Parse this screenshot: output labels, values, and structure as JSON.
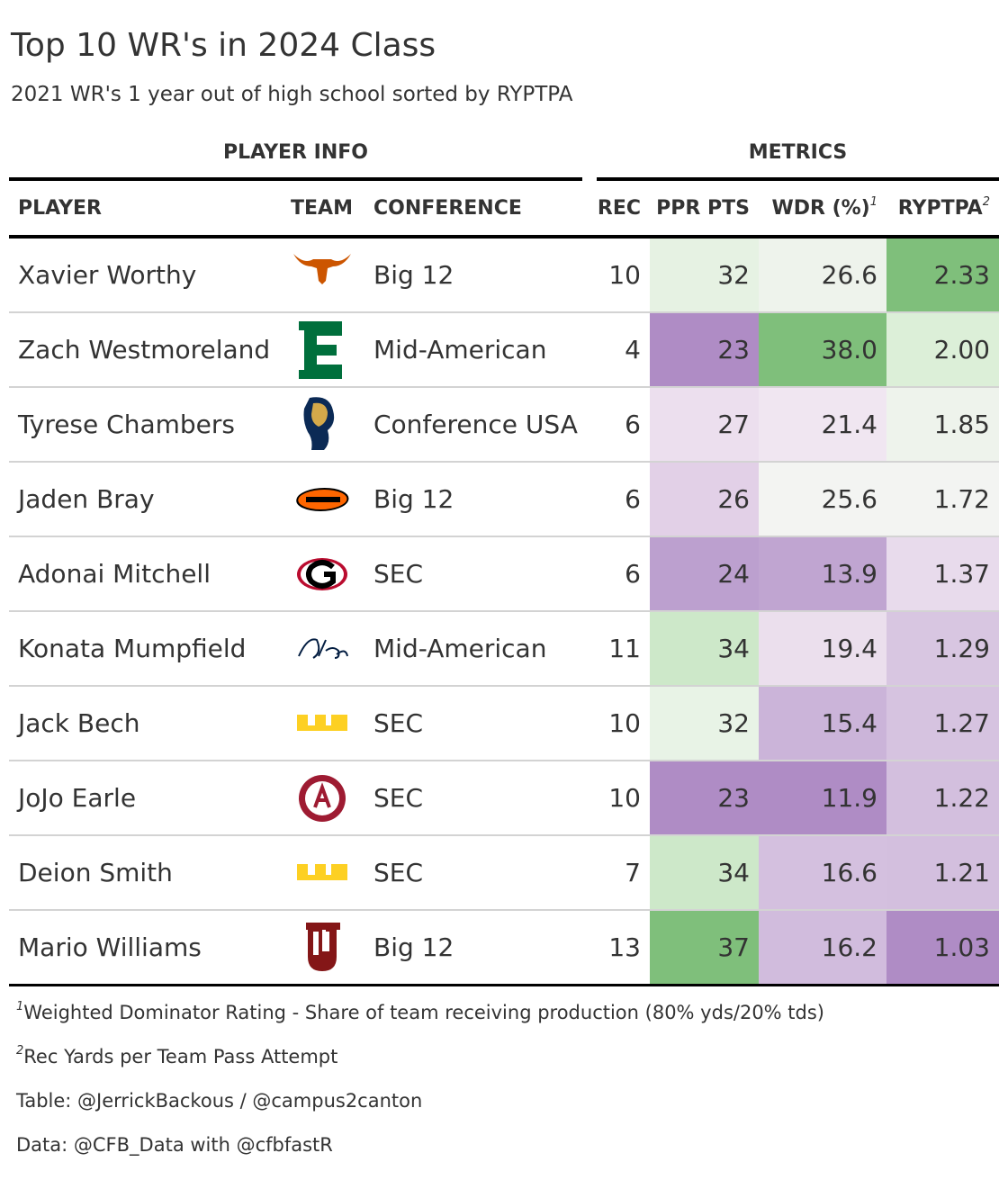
{
  "title": "Top 10 WR's in 2024 Class",
  "subtitle": "2021 WR's 1 year out of high school sorted by RYPTPA",
  "spanners": [
    {
      "label": "PLAYER INFO"
    },
    {
      "label": "METRICS"
    }
  ],
  "columns": [
    {
      "label": "PLAYER"
    },
    {
      "label": "TEAM"
    },
    {
      "label": "CONFERENCE"
    },
    {
      "label": "REC"
    },
    {
      "label": "PPR PTS"
    },
    {
      "label": "WDR (%)",
      "mark": "1"
    },
    {
      "label": "RYPTPA",
      "mark": "2"
    }
  ],
  "rows": [
    [
      "Xavier Worthy",
      null,
      "Big 12",
      10,
      32,
      26.6,
      2.33
    ],
    [
      "Zach Westmoreland",
      null,
      "Mid-American",
      4,
      23,
      {
        "value": 38,
        "label": "38.0"
      },
      {
        "value": 2,
        "label": "2.00"
      }
    ],
    [
      "Tyrese Chambers",
      null,
      "Conference USA",
      6,
      27,
      21.4,
      1.85
    ],
    [
      "Jaden Bray",
      null,
      "Big 12",
      6,
      26,
      25.6,
      1.72
    ],
    [
      "Adonai Mitchell",
      null,
      "SEC",
      6,
      24,
      13.9,
      1.37
    ],
    [
      "Konata Mumpfield",
      null,
      "Mid-American",
      11,
      34,
      19.4,
      1.29
    ],
    [
      "Jack Bech",
      null,
      "SEC",
      10,
      32,
      15.4,
      1.27
    ],
    [
      "JoJo Earle",
      null,
      "SEC",
      10,
      23,
      11.9,
      1.22
    ],
    [
      "Deion Smith",
      null,
      "SEC",
      7,
      34,
      16.6,
      1.21
    ],
    [
      "Mario Williams",
      null,
      "Big 12",
      13,
      37,
      16.2,
      1.03
    ]
  ],
  "cell_colors": [
    [
      null,
      null,
      null,
      null,
      "#e6f2e3",
      "#eef3ec",
      "#7fbf7b"
    ],
    [
      null,
      null,
      null,
      null,
      "#af8cc5",
      "#7fbf7b",
      "#dcefd8"
    ],
    [
      null,
      null,
      null,
      null,
      "#ecdfee",
      "#f0e6f1",
      "#eef3ec"
    ],
    [
      null,
      null,
      null,
      null,
      "#e2d0e7",
      "#f3f4f2",
      "#f3f4f2"
    ],
    [
      null,
      null,
      null,
      null,
      "#bca0cf",
      "#c0a5d1",
      "#e8dbec"
    ],
    [
      null,
      null,
      null,
      null,
      "#cde8c9",
      "#ebdfed",
      "#d8c6e1"
    ],
    [
      null,
      null,
      null,
      null,
      "#e8f3e6",
      "#cbb4d9",
      "#d6c3e0"
    ],
    [
      null,
      null,
      null,
      null,
      "#af8cc5",
      "#af8cc5",
      "#d3bfde"
    ],
    [
      null,
      null,
      null,
      null,
      "#cde8c9",
      "#d4c0df",
      "#d3bfde"
    ],
    [
      null,
      null,
      null,
      null,
      "#7fbf7b",
      "#d1bcdd",
      "#af8cc5"
    ]
  ],
  "footnotes": [
    {
      "mark": "1",
      "text": "Weighted Dominator Rating - Share of team receiving production (80% yds/20% tds)"
    },
    {
      "mark": "2",
      "text": "Rec Yards per Team Pass Attempt"
    }
  ],
  "source_notes": [
    "Table: @JerrickBackous / @campus2canton",
    "Data: @CFB_Data with @cfbfastR"
  ]
}
